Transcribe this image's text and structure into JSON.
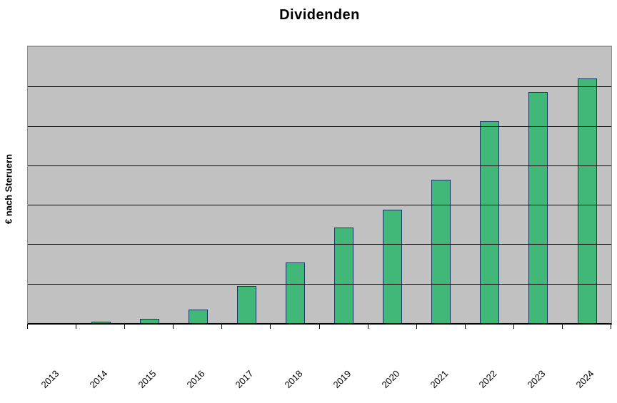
{
  "chart_data": {
    "type": "bar",
    "title": "Dividenden",
    "xlabel": "",
    "ylabel": "€ nach Steruern",
    "categories": [
      "2013",
      "2014",
      "2015",
      "2016",
      "2017",
      "2018",
      "2019",
      "2020",
      "2021",
      "2022",
      "2023",
      "2024"
    ],
    "series": [
      {
        "name": "Dividenden",
        "values": [
          0,
          0.03,
          0.1,
          0.34,
          0.94,
          1.53,
          2.43,
          2.88,
          3.64,
          5.11,
          5.86,
          6.2
        ]
      }
    ],
    "ylim": [
      0,
      7
    ],
    "y_divisions": 7,
    "y_tick_labels_visible": false,
    "value_scale_note": "y-axis shows no numeric tick labels; values estimated in gridline units (1 unit = one horizontal grid division)",
    "grid": "horizontal gridlines over bars",
    "legend": "none",
    "x_label_rotation_deg": -45,
    "colors": {
      "bar_fill": "#41B877",
      "bar_border": "#17375E",
      "plot_background": "#C1C1C1",
      "gridline": "#0A0A0A",
      "axis_line": "#000000",
      "plot_border": "#8C8C8C",
      "page_background": "#FFFFFF",
      "text": "#000000"
    }
  }
}
